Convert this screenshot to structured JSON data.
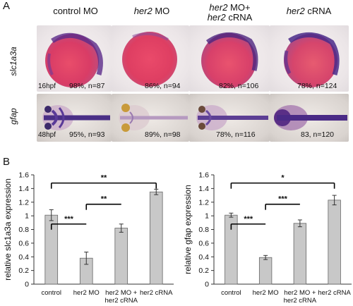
{
  "panel_a": {
    "letter": "A",
    "columns": [
      {
        "plain": "control MO",
        "italic": "",
        "rest": ""
      },
      {
        "plain": "",
        "italic": "her2",
        "rest": " MO"
      },
      {
        "italic": "her2",
        "rest": " MO+",
        "italic2": "her2",
        "rest2": " cRNA"
      },
      {
        "plain": "",
        "italic": "her2",
        "rest": " cRNA"
      }
    ],
    "rows": [
      {
        "label": "slc1a3a",
        "stage": "16hpf",
        "stats": [
          "98%, n=87",
          "86%, n=94",
          "82%, n=106",
          "78%, n=124"
        ]
      },
      {
        "label": "gfap",
        "stage": "48hpf",
        "stats": [
          "95%, n=93",
          "89%, n=98",
          "78%, n=116",
          "83, n=120"
        ]
      }
    ]
  },
  "panel_b": {
    "letter": "B"
  },
  "chart_data": [
    {
      "type": "bar",
      "categories": [
        "control",
        "her2 MO",
        "her2 MO +\nher2 cRNA",
        "her2 cRNA"
      ],
      "values": [
        1.01,
        0.38,
        0.82,
        1.35
      ],
      "errors": [
        0.08,
        0.09,
        0.06,
        0.04
      ],
      "ylabel": "relative slc1a3a expression",
      "xlabel": "",
      "ylim": [
        0,
        1.6
      ],
      "yticks": [
        "0",
        "0.2",
        "0.4",
        "0.6",
        "0.8",
        "1",
        "1.2",
        "1.4",
        "1.6"
      ],
      "bar_color": "#c8c8c8",
      "significance": [
        {
          "from": 0,
          "to": 1,
          "label": "***"
        },
        {
          "from": 1,
          "to": 2,
          "label": "**"
        },
        {
          "from": 0,
          "to": 3,
          "label": "**"
        }
      ]
    },
    {
      "type": "bar",
      "categories": [
        "control",
        "her2 MO",
        "her2 MO +\nher2 cRNA",
        "her2 cRNA"
      ],
      "values": [
        1.01,
        0.39,
        0.89,
        1.23
      ],
      "errors": [
        0.03,
        0.03,
        0.05,
        0.07
      ],
      "ylabel": "relative gfap expression",
      "xlabel": "",
      "ylim": [
        0,
        1.6
      ],
      "yticks": [
        "0",
        "0.2",
        "0.4",
        "0.6",
        "0.8",
        "1",
        "1.2",
        "1.4",
        "1.6"
      ],
      "bar_color": "#c8c8c8",
      "significance": [
        {
          "from": 0,
          "to": 1,
          "label": "***"
        },
        {
          "from": 1,
          "to": 2,
          "label": "***"
        },
        {
          "from": 0,
          "to": 3,
          "label": "*"
        }
      ]
    }
  ]
}
